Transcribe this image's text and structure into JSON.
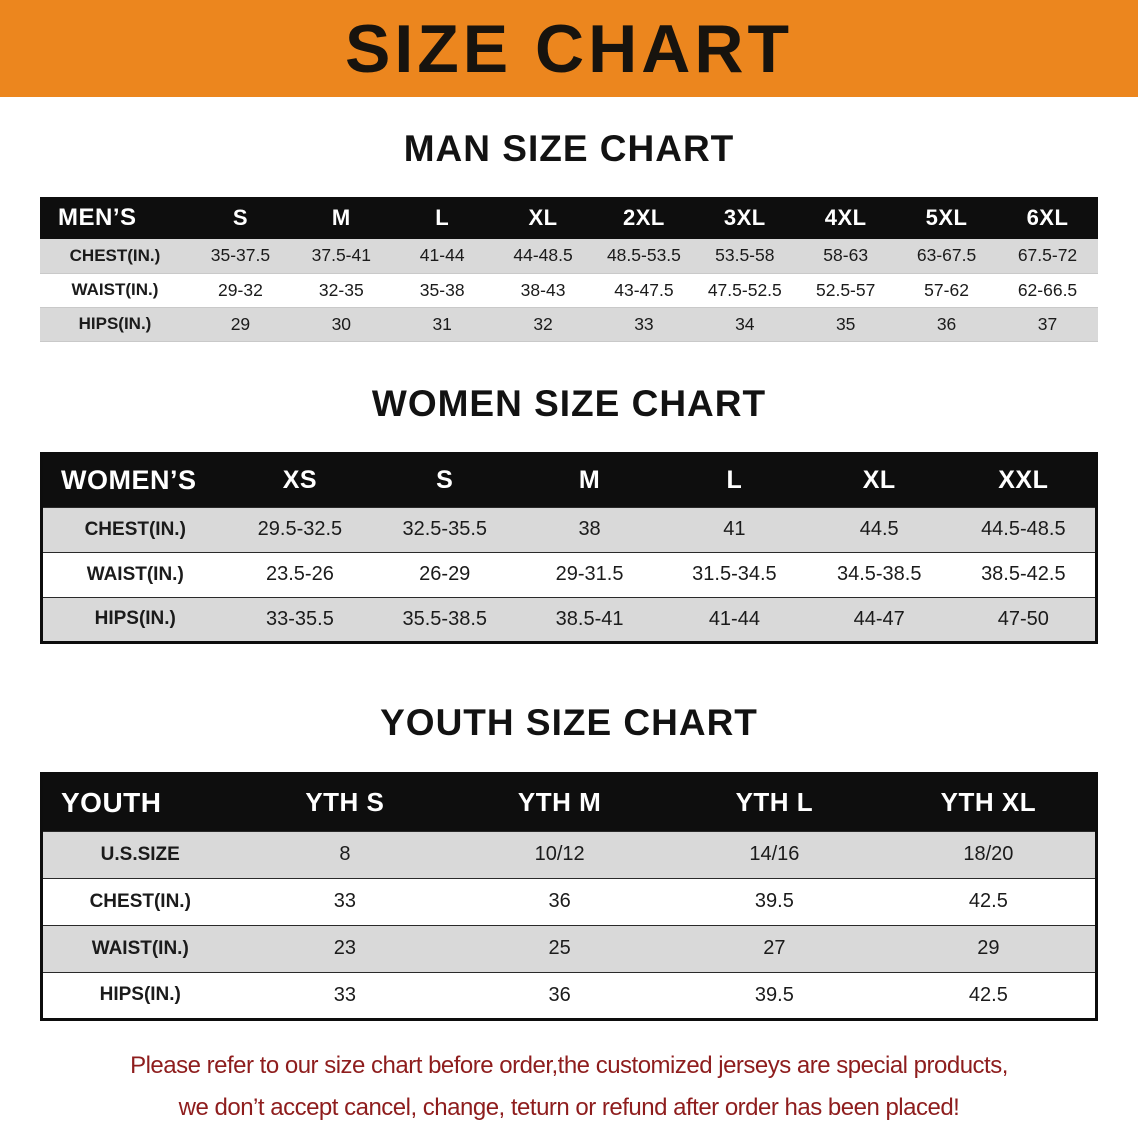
{
  "banner": {
    "title": "SIZE CHART"
  },
  "colors": {
    "banner_bg": "#ec861e",
    "table_header_bg": "#0e0e0e",
    "row_stripe": "#d9d9d9",
    "note_text": "#8e1d1d"
  },
  "men": {
    "title": "MAN SIZE CHART",
    "header": [
      "MEN’S",
      "S",
      "M",
      "L",
      "XL",
      "2XL",
      "3XL",
      "4XL",
      "5XL",
      "6XL"
    ],
    "rows": [
      [
        "CHEST(IN.)",
        "35-37.5",
        "37.5-41",
        "41-44",
        "44-48.5",
        "48.5-53.5",
        "53.5-58",
        "58-63",
        "63-67.5",
        "67.5-72"
      ],
      [
        "WAIST(IN.)",
        "29-32",
        "32-35",
        "35-38",
        "38-43",
        "43-47.5",
        "47.5-52.5",
        "52.5-57",
        "57-62",
        "62-66.5"
      ],
      [
        "HIPS(IN.)",
        "29",
        "30",
        "31",
        "32",
        "33",
        "34",
        "35",
        "36",
        "37"
      ]
    ]
  },
  "women": {
    "title": "WOMEN SIZE CHART",
    "header": [
      "WOMEN’S",
      "XS",
      "S",
      "M",
      "L",
      "XL",
      "XXL"
    ],
    "rows": [
      [
        "CHEST(IN.)",
        "29.5-32.5",
        "32.5-35.5",
        "38",
        "41",
        "44.5",
        "44.5-48.5"
      ],
      [
        "WAIST(IN.)",
        "23.5-26",
        "26-29",
        "29-31.5",
        "31.5-34.5",
        "34.5-38.5",
        "38.5-42.5"
      ],
      [
        "HIPS(IN.)",
        "33-35.5",
        "35.5-38.5",
        "38.5-41",
        "41-44",
        "44-47",
        "47-50"
      ]
    ]
  },
  "youth": {
    "title": "YOUTH SIZE CHART",
    "header": [
      "YOUTH",
      "YTH S",
      "YTH M",
      "YTH L",
      "YTH XL"
    ],
    "rows": [
      [
        "U.S.SIZE",
        "8",
        "10/12",
        "14/16",
        "18/20"
      ],
      [
        "CHEST(IN.)",
        "33",
        "36",
        "39.5",
        "42.5"
      ],
      [
        "WAIST(IN.)",
        "23",
        "25",
        "27",
        "29"
      ],
      [
        "HIPS(IN.)",
        "33",
        "36",
        "39.5",
        "42.5"
      ]
    ]
  },
  "note": {
    "line1": "Please refer to our size chart before order,the customized jerseys are special products,",
    "line2": "we don’t accept cancel, change, teturn or refund after order has been placed!"
  }
}
